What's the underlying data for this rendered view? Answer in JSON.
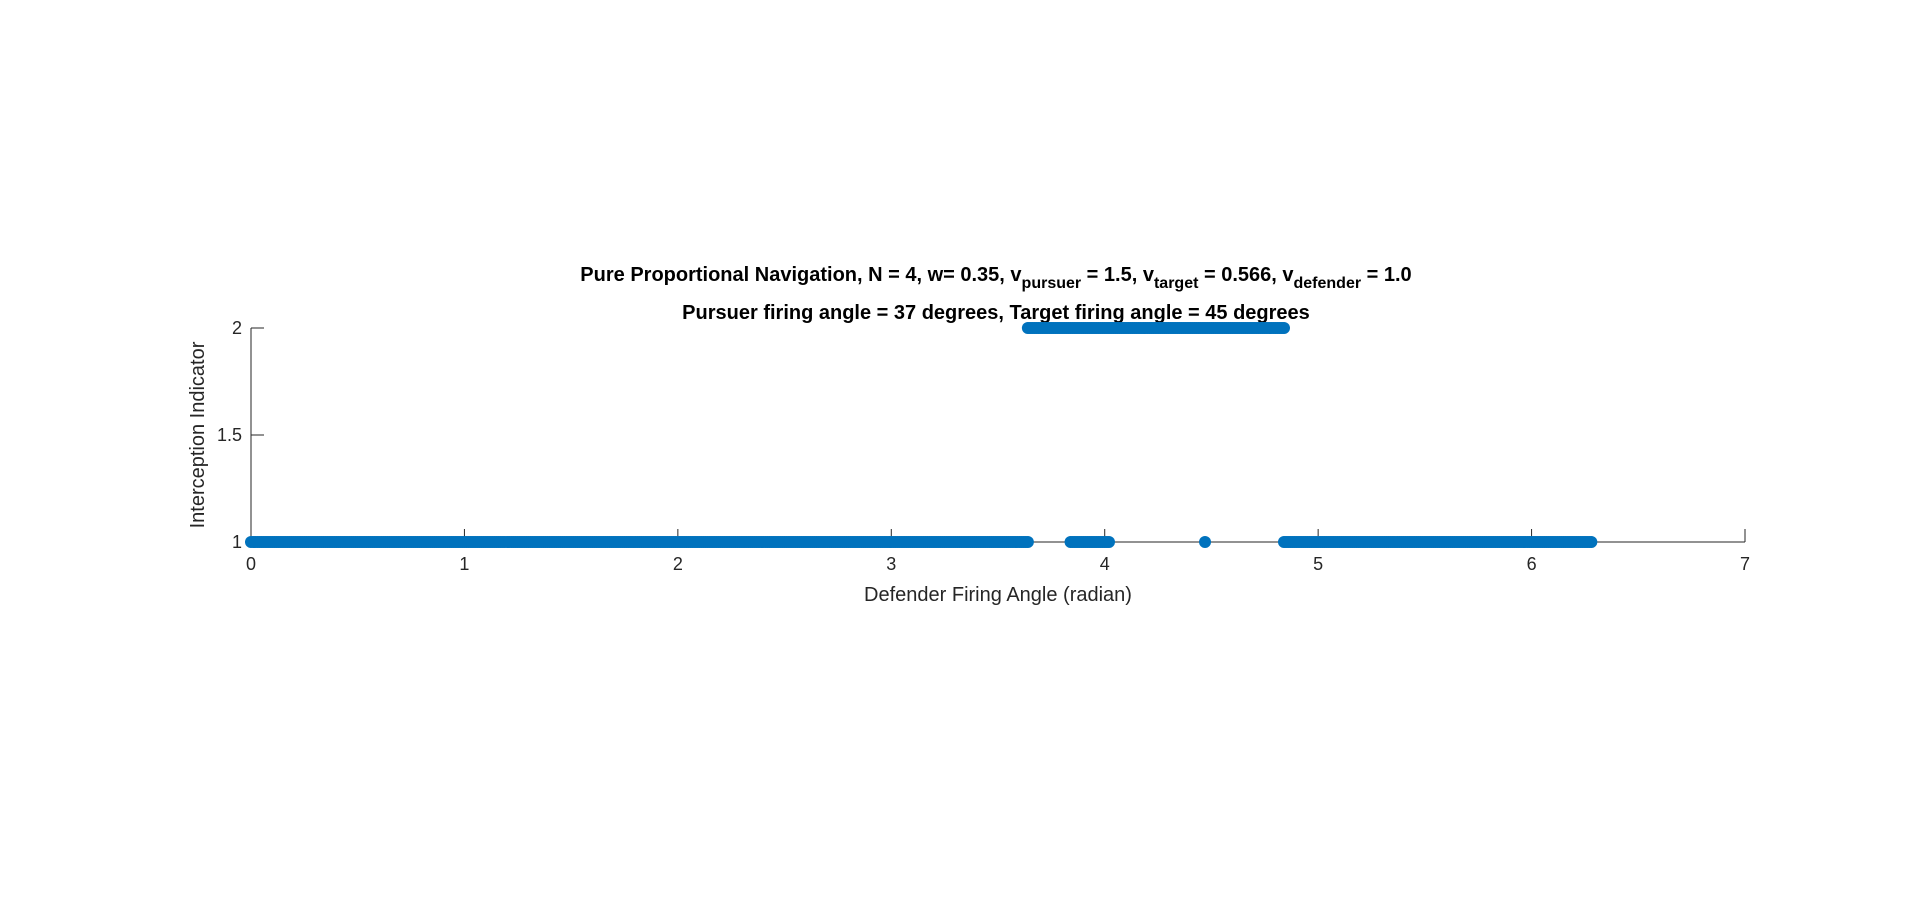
{
  "chart_data": {
    "type": "scatter",
    "title_line1": {
      "prefix": "Pure Proportional Navigation, N = 4, w= 0.35, v",
      "sub1": "pursuer",
      "mid1": " = 1.5, v",
      "sub2": "target",
      "mid2": " = 0.566, v",
      "sub3": "defender",
      "suffix": " = 1.0"
    },
    "title_line2": "Pursuer firing angle = 37 degrees, Target firing angle = 45 degrees",
    "xlabel": "Defender Firing Angle (radian)",
    "ylabel": "Interception Indicator",
    "xlim": [
      0,
      7
    ],
    "ylim": [
      1,
      2
    ],
    "xticks": [
      "0",
      "1",
      "2",
      "3",
      "4",
      "5",
      "6",
      "7"
    ],
    "yticks": [
      "1",
      "1.5",
      "2"
    ],
    "series": [
      {
        "color": "#0072BD",
        "marker": "filled-circle",
        "segments": [
          {
            "x_start": 0.0,
            "x_end": 3.64,
            "y": 1
          },
          {
            "x_start": 3.84,
            "x_end": 4.02,
            "y": 1
          },
          {
            "x_start": 4.47,
            "x_end": 4.47,
            "y": 1
          },
          {
            "x_start": 4.84,
            "x_end": 6.28,
            "y": 1
          },
          {
            "x_start": 3.64,
            "x_end": 4.84,
            "y": 2
          }
        ]
      }
    ],
    "grid": false,
    "legend": "none"
  }
}
